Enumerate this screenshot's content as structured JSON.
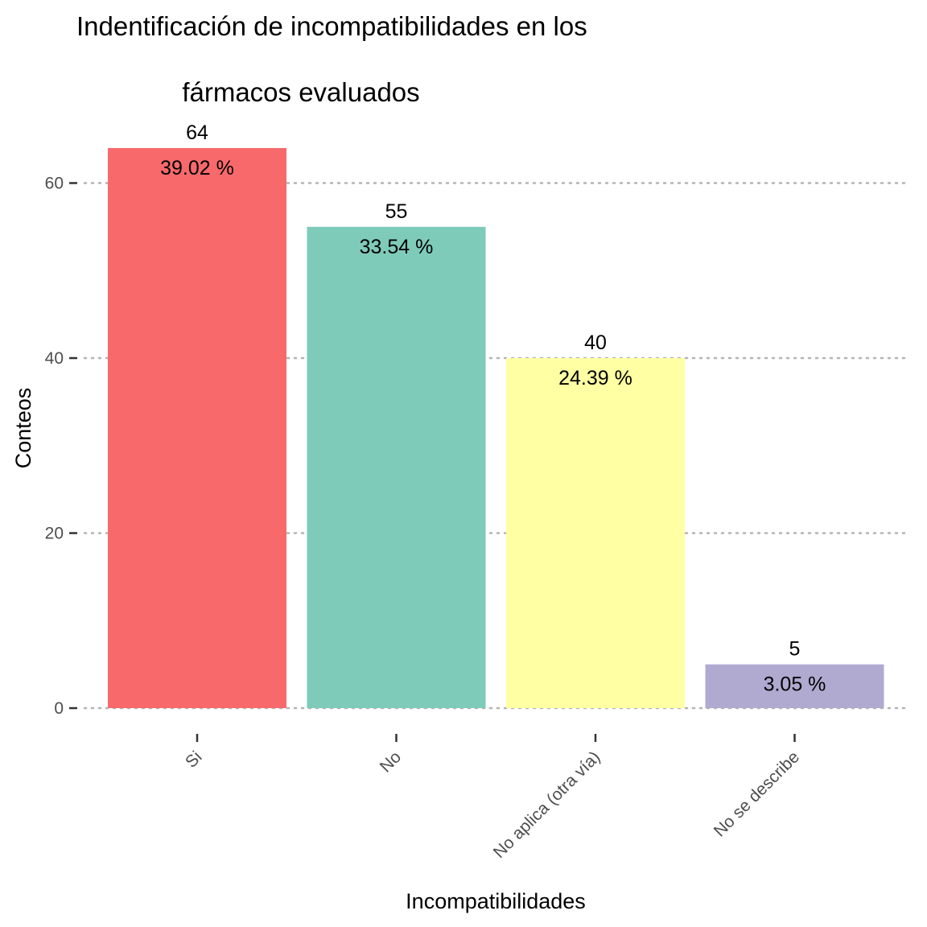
{
  "chart_data": {
    "type": "bar",
    "title_lines": [
      "Indentificación de incompatibilidades en los",
      "fármacos evaluados"
    ],
    "xlabel": "Incompatibilidades",
    "ylabel": "Conteos",
    "categories": [
      "Si",
      "No",
      "No aplica (otra vía)",
      "No se describe"
    ],
    "values": [
      64,
      55,
      40,
      5
    ],
    "count_labels": [
      "64",
      "55",
      "40",
      "5"
    ],
    "percent_labels": [
      "39.02 %",
      "33.54 %",
      "24.39 %",
      "3.05 %"
    ],
    "colors": [
      "#F8696B",
      "#7FCBBA",
      "#FFFFA3",
      "#B0AAD1"
    ],
    "ylim": [
      0,
      64
    ],
    "yticks": [
      0,
      20,
      40,
      60
    ],
    "ytick_labels": [
      "0",
      "20",
      "40",
      "60"
    ],
    "grid": "horizontal-dotted",
    "legend": "none"
  }
}
